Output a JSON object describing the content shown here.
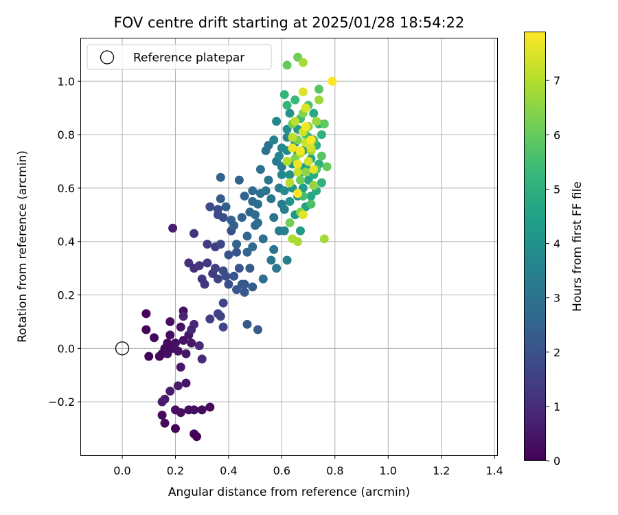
{
  "chart_data": {
    "type": "scatter",
    "title": "FOV centre drift starting at 2025/01/28 18:54:22",
    "xlabel": "Angular distance from reference (arcmin)",
    "ylabel": "Rotation from reference (arcmin)",
    "xlim": [
      -0.155,
      1.41
    ],
    "ylim": [
      -0.4,
      1.16
    ],
    "xticks": [
      "0.0",
      "0.2",
      "0.4",
      "0.6",
      "0.8",
      "1.0",
      "1.2",
      "1.4"
    ],
    "yticks": [
      "−0.2",
      "0.0",
      "0.2",
      "0.4",
      "0.6",
      "0.8",
      "1.0"
    ],
    "grid": true,
    "legend": {
      "placement": "top-left",
      "entries": [
        "Reference platepar"
      ]
    },
    "reference_point": {
      "x": 0.0,
      "y": 0.0
    },
    "colorbar": {
      "label": "Hours from first FF file",
      "range": [
        0,
        7.9
      ],
      "ticks": [
        "0",
        "1",
        "2",
        "3",
        "4",
        "5",
        "6",
        "7"
      ],
      "colormap": "viridis",
      "colormap_colors": [
        "#440154",
        "#482878",
        "#3e4989",
        "#31688e",
        "#26828e",
        "#1f9e89",
        "#35b779",
        "#6ece58",
        "#b5de2b",
        "#fde725"
      ]
    },
    "series": [
      {
        "points": [
          [
            0.09,
            0.13,
            0.1
          ],
          [
            0.09,
            0.07,
            0.1
          ],
          [
            0.1,
            -0.03,
            0.1
          ],
          [
            0.12,
            0.04,
            0.2
          ],
          [
            0.14,
            -0.03,
            0.2
          ],
          [
            0.15,
            -0.02,
            0.2
          ],
          [
            0.16,
            0.0,
            0.2
          ],
          [
            0.17,
            0.02,
            0.2
          ],
          [
            0.17,
            -0.02,
            0.3
          ],
          [
            0.18,
            0.05,
            0.3
          ],
          [
            0.18,
            0.1,
            0.3
          ],
          [
            0.19,
            0.0,
            0.3
          ],
          [
            0.2,
            0.02,
            0.3
          ],
          [
            0.21,
            -0.01,
            0.4
          ],
          [
            0.22,
            0.08,
            0.4
          ],
          [
            0.23,
            0.14,
            0.4
          ],
          [
            0.23,
            0.03,
            0.4
          ],
          [
            0.24,
            -0.02,
            0.5
          ],
          [
            0.25,
            0.05,
            0.5
          ],
          [
            0.26,
            0.02,
            0.5
          ],
          [
            0.22,
            -0.07,
            0.5
          ],
          [
            0.24,
            -0.13,
            0.5
          ],
          [
            0.21,
            -0.14,
            0.6
          ],
          [
            0.18,
            -0.16,
            0.6
          ],
          [
            0.15,
            -0.2,
            0.6
          ],
          [
            0.16,
            -0.19,
            0.6
          ],
          [
            0.2,
            -0.23,
            0.3
          ],
          [
            0.22,
            -0.24,
            0.3
          ],
          [
            0.25,
            -0.23,
            0.3
          ],
          [
            0.27,
            -0.23,
            0.3
          ],
          [
            0.3,
            -0.23,
            0.2
          ],
          [
            0.33,
            -0.22,
            0.2
          ],
          [
            0.15,
            -0.25,
            0.2
          ],
          [
            0.16,
            -0.28,
            0.2
          ],
          [
            0.2,
            -0.3,
            0.1
          ],
          [
            0.27,
            -0.32,
            0.1
          ],
          [
            0.28,
            -0.33,
            0.0
          ],
          [
            0.27,
            0.09,
            0.9
          ],
          [
            0.29,
            0.01,
            0.9
          ],
          [
            0.3,
            -0.04,
            0.9
          ],
          [
            0.26,
            0.07,
            0.8
          ],
          [
            0.23,
            0.12,
            0.8
          ],
          [
            0.19,
            0.45,
            0.7
          ],
          [
            0.25,
            0.32,
            1.1
          ],
          [
            0.27,
            0.3,
            1.1
          ],
          [
            0.29,
            0.31,
            1.2
          ],
          [
            0.27,
            0.43,
            1.2
          ],
          [
            0.3,
            0.26,
            1.3
          ],
          [
            0.31,
            0.24,
            1.3
          ],
          [
            0.32,
            0.32,
            1.3
          ],
          [
            0.32,
            0.39,
            1.4
          ],
          [
            0.33,
            0.11,
            1.4
          ],
          [
            0.34,
            0.28,
            1.4
          ],
          [
            0.35,
            0.38,
            1.5
          ],
          [
            0.35,
            0.3,
            1.5
          ],
          [
            0.36,
            0.26,
            1.6
          ],
          [
            0.36,
            0.13,
            1.6
          ],
          [
            0.37,
            0.12,
            1.6
          ],
          [
            0.37,
            0.39,
            1.7
          ],
          [
            0.38,
            0.08,
            1.7
          ],
          [
            0.38,
            0.17,
            1.7
          ],
          [
            0.33,
            0.53,
            1.8
          ],
          [
            0.36,
            0.52,
            1.8
          ],
          [
            0.36,
            0.5,
            1.8
          ],
          [
            0.38,
            0.49,
            1.9
          ],
          [
            0.38,
            0.29,
            1.9
          ],
          [
            0.39,
            0.27,
            1.9
          ],
          [
            0.4,
            0.24,
            2.0
          ],
          [
            0.4,
            0.35,
            2.0
          ],
          [
            0.41,
            0.44,
            2.0
          ],
          [
            0.42,
            0.27,
            2.1
          ],
          [
            0.43,
            0.36,
            2.1
          ],
          [
            0.43,
            0.22,
            2.1
          ],
          [
            0.44,
            0.3,
            2.1
          ],
          [
            0.45,
            0.24,
            2.2
          ],
          [
            0.46,
            0.21,
            2.2
          ],
          [
            0.46,
            0.24,
            2.2
          ],
          [
            0.47,
            0.09,
            2.2
          ],
          [
            0.48,
            0.3,
            2.3
          ],
          [
            0.49,
            0.23,
            2.3
          ],
          [
            0.51,
            0.07,
            2.3
          ],
          [
            0.37,
            0.56,
            2.3
          ],
          [
            0.37,
            0.64,
            2.4
          ],
          [
            0.39,
            0.53,
            2.4
          ],
          [
            0.41,
            0.48,
            2.4
          ],
          [
            0.42,
            0.46,
            2.4
          ],
          [
            0.43,
            0.39,
            2.5
          ],
          [
            0.44,
            0.63,
            2.5
          ],
          [
            0.45,
            0.49,
            2.5
          ],
          [
            0.46,
            0.57,
            2.5
          ],
          [
            0.47,
            0.42,
            2.6
          ],
          [
            0.47,
            0.36,
            2.6
          ],
          [
            0.48,
            0.51,
            2.6
          ],
          [
            0.49,
            0.55,
            2.7
          ],
          [
            0.49,
            0.59,
            2.7
          ],
          [
            0.49,
            0.38,
            2.7
          ],
          [
            0.5,
            0.46,
            2.7
          ],
          [
            0.5,
            0.5,
            2.8
          ],
          [
            0.51,
            0.47,
            2.8
          ],
          [
            0.51,
            0.54,
            2.8
          ],
          [
            0.52,
            0.58,
            2.8
          ],
          [
            0.52,
            0.67,
            2.9
          ],
          [
            0.53,
            0.41,
            2.9
          ],
          [
            0.53,
            0.26,
            2.9
          ],
          [
            0.54,
            0.59,
            3.0
          ],
          [
            0.54,
            0.74,
            3.0
          ],
          [
            0.55,
            0.76,
            3.0
          ],
          [
            0.55,
            0.63,
            3.0
          ],
          [
            0.56,
            0.56,
            3.1
          ],
          [
            0.56,
            0.33,
            3.1
          ],
          [
            0.57,
            0.49,
            3.1
          ],
          [
            0.57,
            0.37,
            3.1
          ],
          [
            0.58,
            0.3,
            3.2
          ],
          [
            0.58,
            0.7,
            3.2
          ],
          [
            0.59,
            0.6,
            3.2
          ],
          [
            0.59,
            0.44,
            3.3
          ],
          [
            0.6,
            0.54,
            3.3
          ],
          [
            0.6,
            0.68,
            3.3
          ],
          [
            0.61,
            0.44,
            3.4
          ],
          [
            0.61,
            0.52,
            3.4
          ],
          [
            0.62,
            0.33,
            3.4
          ],
          [
            0.62,
            0.79,
            3.5
          ],
          [
            0.57,
            0.78,
            3.5
          ],
          [
            0.58,
            0.85,
            3.6
          ],
          [
            0.59,
            0.72,
            3.6
          ],
          [
            0.6,
            0.65,
            3.7
          ],
          [
            0.6,
            0.75,
            3.7
          ],
          [
            0.61,
            0.59,
            3.8
          ],
          [
            0.62,
            0.74,
            3.8
          ],
          [
            0.62,
            0.82,
            3.9
          ],
          [
            0.63,
            0.65,
            3.9
          ],
          [
            0.63,
            0.55,
            4.0
          ],
          [
            0.63,
            0.88,
            4.0
          ],
          [
            0.64,
            0.6,
            4.0
          ],
          [
            0.64,
            0.69,
            4.1
          ],
          [
            0.65,
            0.77,
            4.1
          ],
          [
            0.65,
            0.5,
            4.2
          ],
          [
            0.66,
            0.57,
            4.2
          ],
          [
            0.66,
            0.82,
            4.3
          ],
          [
            0.67,
            0.66,
            4.3
          ],
          [
            0.67,
            0.44,
            4.3
          ],
          [
            0.68,
            0.6,
            4.4
          ],
          [
            0.68,
            0.74,
            4.4
          ],
          [
            0.69,
            0.68,
            4.5
          ],
          [
            0.69,
            0.53,
            4.5
          ],
          [
            0.7,
            0.63,
            4.6
          ],
          [
            0.7,
            0.79,
            4.6
          ],
          [
            0.71,
            0.71,
            4.7
          ],
          [
            0.71,
            0.57,
            4.7
          ],
          [
            0.72,
            0.88,
            4.8
          ],
          [
            0.72,
            0.65,
            4.8
          ],
          [
            0.73,
            0.76,
            4.9
          ],
          [
            0.73,
            0.59,
            4.9
          ],
          [
            0.74,
            0.69,
            5.0
          ],
          [
            0.74,
            0.84,
            5.0
          ],
          [
            0.75,
            0.8,
            5.1
          ],
          [
            0.75,
            0.62,
            5.1
          ],
          [
            0.61,
            0.95,
            5.2
          ],
          [
            0.62,
            0.91,
            5.2
          ],
          [
            0.64,
            0.84,
            5.3
          ],
          [
            0.65,
            0.93,
            5.3
          ],
          [
            0.66,
            0.73,
            5.4
          ],
          [
            0.67,
            0.86,
            5.4
          ],
          [
            0.68,
            0.57,
            5.5
          ],
          [
            0.69,
            0.8,
            5.5
          ],
          [
            0.7,
            0.91,
            5.6
          ],
          [
            0.71,
            0.54,
            5.6
          ],
          [
            0.72,
            0.78,
            5.7
          ],
          [
            0.73,
            0.67,
            5.7
          ],
          [
            0.74,
            0.97,
            5.8
          ],
          [
            0.75,
            0.72,
            5.8
          ],
          [
            0.76,
            0.84,
            5.9
          ],
          [
            0.77,
            0.68,
            6.0
          ],
          [
            0.62,
            1.06,
            6.0
          ],
          [
            0.66,
            1.09,
            6.1
          ],
          [
            0.67,
            0.63,
            6.1
          ],
          [
            0.63,
            0.47,
            6.2
          ],
          [
            0.64,
            0.84,
            6.2
          ],
          [
            0.65,
            0.71,
            6.3
          ],
          [
            0.66,
            0.78,
            6.3
          ],
          [
            0.67,
            0.51,
            6.4
          ],
          [
            0.68,
            0.88,
            6.4
          ],
          [
            0.69,
            0.66,
            6.5
          ],
          [
            0.7,
            0.83,
            6.5
          ],
          [
            0.71,
            0.74,
            6.6
          ],
          [
            0.72,
            0.61,
            6.6
          ],
          [
            0.73,
            0.85,
            6.7
          ],
          [
            0.74,
            0.93,
            6.7
          ],
          [
            0.76,
            0.41,
            6.8
          ],
          [
            0.68,
            1.07,
            6.8
          ],
          [
            0.64,
            0.41,
            6.9
          ],
          [
            0.66,
            0.4,
            6.9
          ],
          [
            0.62,
            0.7,
            7.0
          ],
          [
            0.63,
            0.62,
            7.0
          ],
          [
            0.64,
            0.79,
            7.1
          ],
          [
            0.65,
            0.85,
            7.1
          ],
          [
            0.66,
            0.66,
            7.2
          ],
          [
            0.67,
            0.73,
            7.2
          ],
          [
            0.68,
            0.81,
            7.3
          ],
          [
            0.69,
            0.77,
            7.3
          ],
          [
            0.7,
            0.7,
            7.4
          ],
          [
            0.71,
            0.75,
            7.4
          ],
          [
            0.68,
            0.96,
            7.5
          ],
          [
            0.69,
            0.9,
            7.5
          ],
          [
            0.72,
            0.67,
            7.6
          ],
          [
            0.68,
            0.5,
            7.6
          ],
          [
            0.64,
            0.75,
            7.7
          ],
          [
            0.66,
            0.69,
            7.7
          ],
          [
            0.67,
            0.74,
            7.8
          ],
          [
            0.69,
            0.83,
            7.8
          ],
          [
            0.71,
            0.78,
            7.9
          ],
          [
            0.66,
            0.58,
            7.9
          ],
          [
            0.79,
            1.0,
            7.9
          ]
        ]
      }
    ]
  }
}
